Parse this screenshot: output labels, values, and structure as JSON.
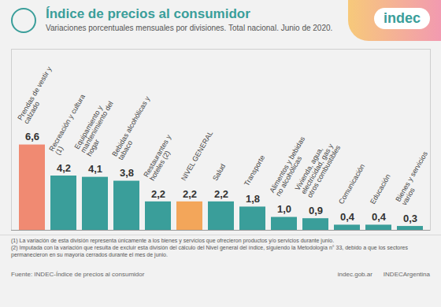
{
  "chart_data": {
    "type": "bar",
    "title": "Índice de precios al consumidor",
    "subtitle": "Variaciones porcentuales mensuales por divisiones. Total nacional. Junio de 2020.",
    "logo": "indec",
    "categories": [
      "Prendas de vestir y calzado",
      "Recreación y cultura (1)",
      "Equipamiento y mantenimiento del hogar",
      "Bebidas alcohólicas y tabaco",
      "Restaurantes y hoteles (2)",
      "NIVEL GENERAL",
      "Salud",
      "Transporte",
      "Alimentos y bebidas no alcohólicas",
      "Vivienda, agua, electricidad, gas y otros combustibles",
      "Comunicación",
      "Educación",
      "Bienes y servicios varios"
    ],
    "values": [
      6.6,
      4.2,
      4.1,
      3.8,
      2.2,
      2.2,
      2.2,
      1.8,
      1.0,
      0.9,
      0.4,
      0.4,
      0.3
    ],
    "value_labels": [
      "6,6",
      "4,2",
      "4,1",
      "3,8",
      "2,2",
      "2,2",
      "2,2",
      "1,8",
      "1,0",
      "0,9",
      "0,4",
      "0,4",
      "0,3"
    ],
    "colors": [
      "#f08a72",
      "#3a9e9a",
      "#3a9e9a",
      "#3a9e9a",
      "#3a9e9a",
      "#f3a65a",
      "#3a9e9a",
      "#3a9e9a",
      "#3a9e9a",
      "#3a9e9a",
      "#3a9e9a",
      "#3a9e9a",
      "#3a9e9a"
    ],
    "ylim": [
      0,
      14
    ],
    "yticks": [
      0
    ],
    "grid": false,
    "data_labels": true,
    "tick_labels": false,
    "notes": [
      "(1) La variación de esta división representa únicamente a los bienes y servicios que ofrecieron productos y/o servicios durante junio.",
      "(2) Imputada con la variación que resulta de excluir esta división del cálculo del Nivel general del índice, siguiendo la Metodología n° 33, debido a que los sectores permanecieron en su mayoría cerrados durante el mes de junio."
    ],
    "source": "Fuente: INDEC-Índice de precios al consumidor",
    "website": "indec.gob.ar",
    "social": "INDECArgentina"
  }
}
